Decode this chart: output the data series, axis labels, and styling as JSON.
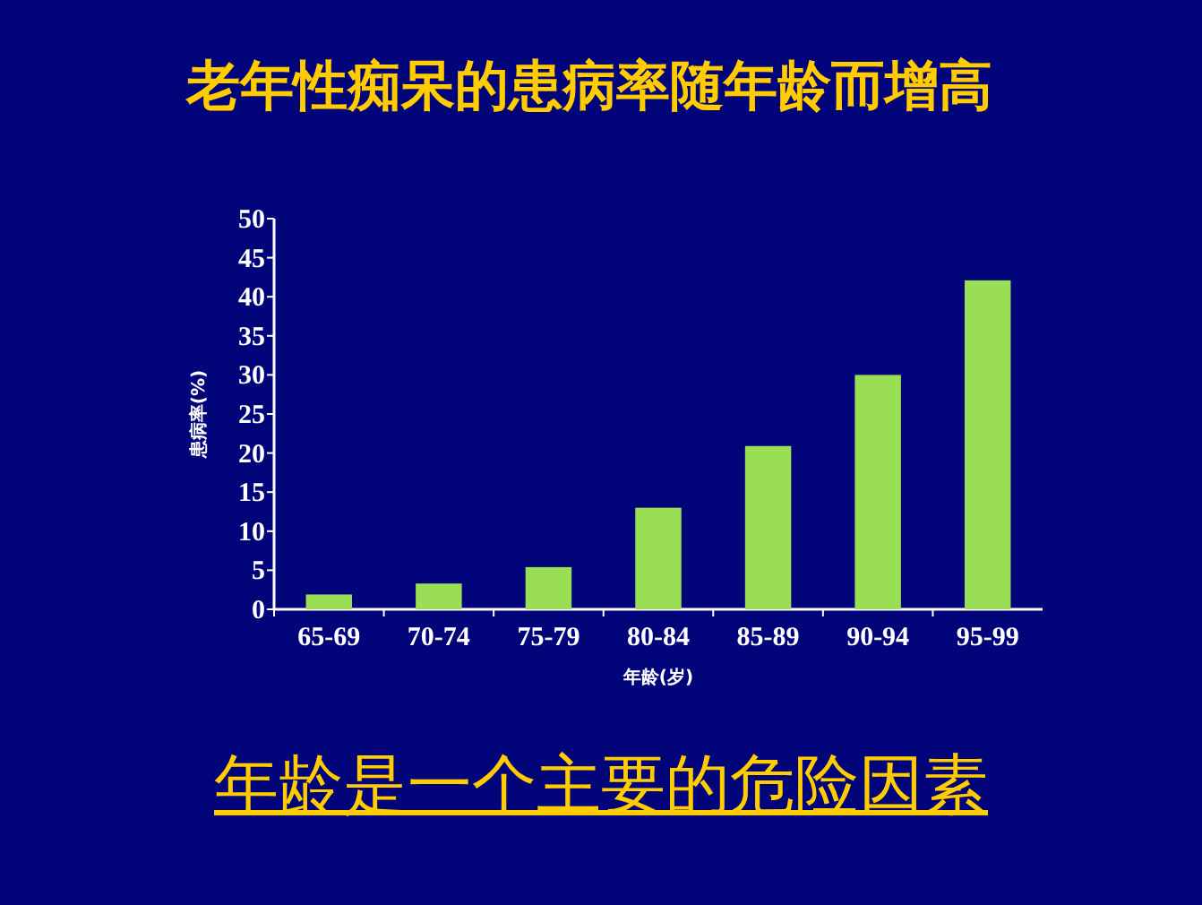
{
  "chart_data": {
    "type": "bar",
    "title": "老年性痴呆的患病率随年龄而增高",
    "xlabel": "年龄(岁)",
    "ylabel": "患病率(%)",
    "categories": [
      "65-69",
      "70-74",
      "75-79",
      "80-84",
      "85-89",
      "90-94",
      "95-99"
    ],
    "series": [
      {
        "color": "#9ade55",
        "values": [
          1.9,
          3.3,
          5.4,
          13.0,
          20.9,
          30.0,
          42.1
        ]
      }
    ],
    "ylim": [
      0,
      50
    ],
    "yticks": [
      0,
      5,
      10,
      15,
      20,
      25,
      30,
      35,
      40,
      45,
      50
    ],
    "grid": false,
    "annotations": [
      "年龄是一个主要的危险因素"
    ]
  }
}
